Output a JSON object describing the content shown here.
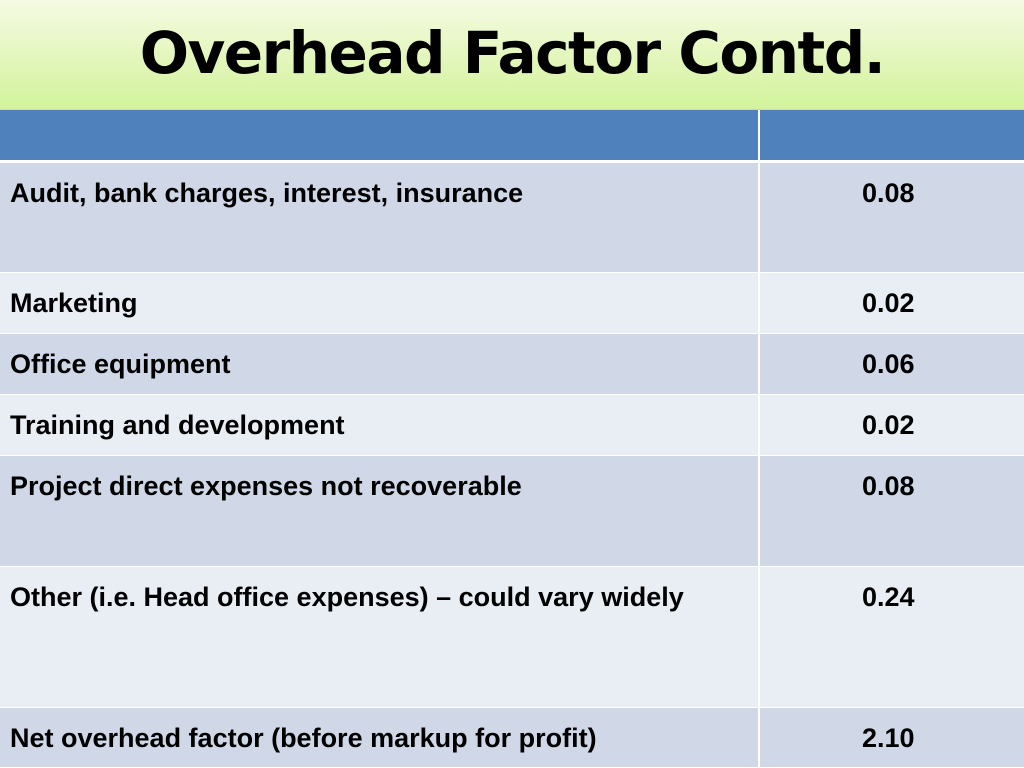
{
  "slide": {
    "title": "Overhead Factor Contd."
  },
  "table": {
    "headers": [
      "",
      ""
    ],
    "rows": [
      {
        "item": "Audit, bank charges, interest, insurance",
        "value": "0.08"
      },
      {
        "item": "Marketing",
        "value": "0.02"
      },
      {
        "item": "Office equipment",
        "value": "0.06"
      },
      {
        "item": "Training and development",
        "value": "0.02"
      },
      {
        "item": "Project direct expenses not recoverable",
        "value": "0.08"
      },
      {
        "item": "Other (i.e. Head office expenses) – could vary widely",
        "value": "0.24"
      },
      {
        "item": "Net overhead factor (before markup for profit)",
        "value": "2.10"
      }
    ]
  },
  "colors": {
    "title_bg": "#e6f7c2",
    "header_bg": "#4f81bd",
    "row_odd_bg": "#d0d8e8",
    "row_even_bg": "#e9edf4"
  }
}
